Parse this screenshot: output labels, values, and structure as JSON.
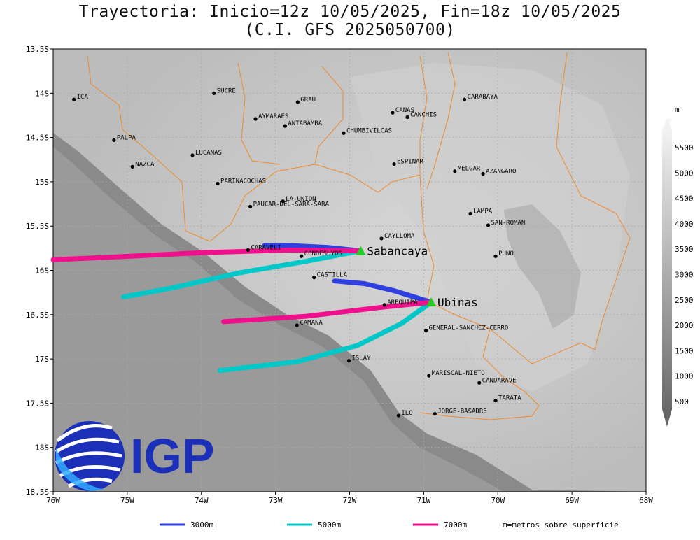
{
  "title": {
    "line1": "Trayectoria: Inicio=12z 10/05/2025, Fin=18z 10/05/2025",
    "line2": "(C.I. GFS 2025050700)"
  },
  "map": {
    "lon_range": [
      -76,
      -68
    ],
    "lat_range": [
      -18.5,
      -13.5
    ],
    "x_ticks": [
      "76W",
      "75W",
      "74W",
      "73W",
      "72W",
      "71W",
      "70W",
      "69W",
      "68W"
    ],
    "y_ticks": [
      "13.5S",
      "14S",
      "14.5S",
      "15S",
      "15.5S",
      "16S",
      "16.5S",
      "17S",
      "17.5S",
      "18S",
      "18.5S"
    ],
    "grid": true
  },
  "provinces": [
    {
      "name": "ICA",
      "lon": -75.72,
      "lat": -14.07
    },
    {
      "name": "SUCRE",
      "lon": -73.83,
      "lat": -14.0
    },
    {
      "name": "GRAU",
      "lon": -72.7,
      "lat": -14.1
    },
    {
      "name": "AYMARAES",
      "lon": -73.27,
      "lat": -14.29
    },
    {
      "name": "ANTABAMBA",
      "lon": -72.87,
      "lat": -14.37
    },
    {
      "name": "CANAS",
      "lon": -71.42,
      "lat": -14.22
    },
    {
      "name": "CANCHIS",
      "lon": -71.22,
      "lat": -14.27
    },
    {
      "name": "CARABAYA",
      "lon": -70.45,
      "lat": -14.07
    },
    {
      "name": "CHUMBIVILCAS",
      "lon": -72.08,
      "lat": -14.45
    },
    {
      "name": "PALPA",
      "lon": -75.18,
      "lat": -14.53
    },
    {
      "name": "LUCANAS",
      "lon": -74.12,
      "lat": -14.7
    },
    {
      "name": "NAZCA",
      "lon": -74.93,
      "lat": -14.83
    },
    {
      "name": "ESPINAR",
      "lon": -71.4,
      "lat": -14.8
    },
    {
      "name": "MELGAR",
      "lon": -70.58,
      "lat": -14.88
    },
    {
      "name": "AZANGARO",
      "lon": -70.2,
      "lat": -14.91
    },
    {
      "name": "PARINACOCHAS",
      "lon": -73.78,
      "lat": -15.02
    },
    {
      "name": "LA-UNION",
      "lon": -72.9,
      "lat": -15.22
    },
    {
      "name": "PAUCAR-DEL-SARA-SARA",
      "lon": -73.34,
      "lat": -15.28
    },
    {
      "name": "LAMPA",
      "lon": -70.37,
      "lat": -15.36
    },
    {
      "name": "SAN-ROMAN",
      "lon": -70.13,
      "lat": -15.49
    },
    {
      "name": "CAYLLOMA",
      "lon": -71.57,
      "lat": -15.64
    },
    {
      "name": "CARAVELI",
      "lon": -73.37,
      "lat": -15.77
    },
    {
      "name": "CONDESUYOS",
      "lon": -72.65,
      "lat": -15.84
    },
    {
      "name": "PUNO",
      "lon": -70.03,
      "lat": -15.84
    },
    {
      "name": "CASTILLA",
      "lon": -72.48,
      "lat": -16.08
    },
    {
      "name": "AREQUIPA",
      "lon": -71.53,
      "lat": -16.39
    },
    {
      "name": "CAMANA",
      "lon": -72.71,
      "lat": -16.62
    },
    {
      "name": "GENERAL-SANCHEZ-CERRO",
      "lon": -70.97,
      "lat": -16.68
    },
    {
      "name": "ISLAY",
      "lon": -72.01,
      "lat": -17.02
    },
    {
      "name": "MARISCAL-NIETO",
      "lon": -70.93,
      "lat": -17.19
    },
    {
      "name": "CANDARAVE",
      "lon": -70.25,
      "lat": -17.27
    },
    {
      "name": "TARATA",
      "lon": -70.03,
      "lat": -17.47
    },
    {
      "name": "ILO",
      "lon": -71.34,
      "lat": -17.64
    },
    {
      "name": "JORGE-BASADRE",
      "lon": -70.85,
      "lat": -17.62
    }
  ],
  "volcanoes": [
    {
      "name": "Sabancaya",
      "lon": -71.85,
      "lat": -15.78
    },
    {
      "name": "Ubinas",
      "lon": -70.9,
      "lat": -16.36
    }
  ],
  "trajectories": [
    {
      "volcano": "Sabancaya",
      "level": "3000m",
      "color": "#3040e0",
      "points": [
        [
          -71.85,
          -15.78
        ],
        [
          -72.3,
          -15.74
        ],
        [
          -72.8,
          -15.72
        ],
        [
          -73.15,
          -15.72
        ]
      ]
    },
    {
      "volcano": "Sabancaya",
      "level": "5000m",
      "color": "#00c8c8",
      "points": [
        [
          -71.85,
          -15.78
        ],
        [
          -72.6,
          -15.9
        ],
        [
          -73.5,
          -16.03
        ],
        [
          -74.4,
          -16.2
        ],
        [
          -75.05,
          -16.3
        ]
      ]
    },
    {
      "volcano": "Sabancaya",
      "level": "7000m",
      "color": "#f0108c",
      "points": [
        [
          -71.85,
          -15.78
        ],
        [
          -72.8,
          -15.77
        ],
        [
          -74.0,
          -15.8
        ],
        [
          -75.2,
          -15.85
        ],
        [
          -76.0,
          -15.88
        ]
      ]
    },
    {
      "volcano": "Ubinas",
      "level": "3000m",
      "color": "#3040e0",
      "points": [
        [
          -70.9,
          -16.36
        ],
        [
          -71.4,
          -16.23
        ],
        [
          -71.8,
          -16.15
        ],
        [
          -72.2,
          -16.12
        ]
      ]
    },
    {
      "volcano": "Ubinas",
      "level": "5000m",
      "color": "#00c8c8",
      "points": [
        [
          -70.9,
          -16.36
        ],
        [
          -71.3,
          -16.6
        ],
        [
          -71.9,
          -16.85
        ],
        [
          -72.7,
          -17.03
        ],
        [
          -73.75,
          -17.13
        ]
      ]
    },
    {
      "volcano": "Ubinas",
      "level": "7000m",
      "color": "#f0108c",
      "points": [
        [
          -70.9,
          -16.36
        ],
        [
          -71.6,
          -16.42
        ],
        [
          -72.6,
          -16.52
        ],
        [
          -73.7,
          -16.58
        ]
      ]
    }
  ],
  "legend": [
    {
      "label": "3000m",
      "color": "#3040e0"
    },
    {
      "label": "5000m",
      "color": "#00c8c8"
    },
    {
      "label": "7000m",
      "color": "#f0108c"
    }
  ],
  "legend_note": "m=metros sobre superficie",
  "colorbar": {
    "unit": "m",
    "labels": [
      "500",
      "1000",
      "1500",
      "2000",
      "2500",
      "3000",
      "3500",
      "4000",
      "4500",
      "5000",
      "5500"
    ]
  },
  "logo": {
    "text": "IGP"
  }
}
